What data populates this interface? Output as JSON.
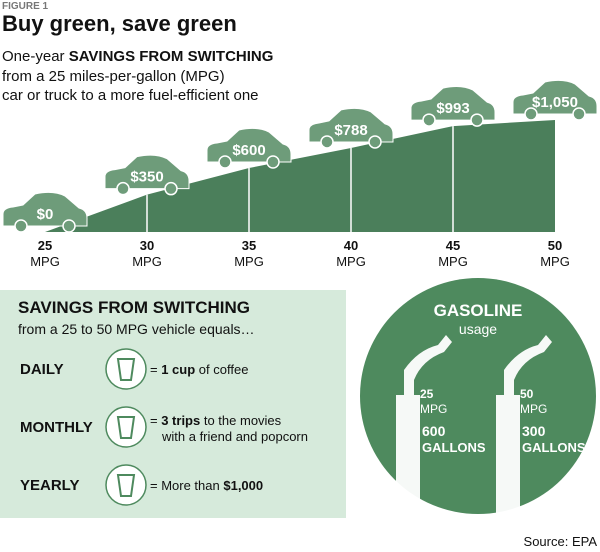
{
  "chart_data": {
    "type": "area",
    "figure_label": "FIGURE 1",
    "title": "Buy green, save green",
    "subtitle": {
      "lead": "One-year",
      "bold": "SAVINGS FROM SWITCHING",
      "lines": [
        "from a 25 miles-per-gallon (MPG)",
        "car or truck to a more fuel-efficient one"
      ]
    },
    "x": [
      25,
      30,
      35,
      40,
      45,
      50
    ],
    "x_label": "MPG",
    "values": [
      0,
      350,
      600,
      788,
      993,
      1050
    ],
    "value_labels": [
      "$0",
      "$350",
      "$600",
      "$788",
      "$993",
      "$1,050"
    ],
    "color": "#4b7f5b",
    "car_color": "#6e9c7a"
  },
  "savings_box": {
    "heading": "SAVINGS FROM SWITCHING",
    "subheading": "from a 25 to 50 MPG vehicle equals…",
    "rows": [
      {
        "period": "DAILY",
        "prefix": "= ",
        "bold": "1 cup",
        "suffix": " of coffee",
        "line2": null
      },
      {
        "period": "MONTHLY",
        "prefix": "= ",
        "bold": "3 trips",
        "suffix": " to the movies",
        "line2": "with a friend and popcorn"
      },
      {
        "period": "YEARLY",
        "prefix": "= More than ",
        "bold": "$1,000",
        "suffix": "",
        "line2": null
      }
    ]
  },
  "gasoline": {
    "title": "GASOLINE",
    "subtitle": "usage",
    "items": [
      {
        "mpg": 25,
        "mpg_unit": "MPG",
        "gallons": 600,
        "gallons_unit": "GALLONS"
      },
      {
        "mpg": 50,
        "mpg_unit": "MPG",
        "gallons": 300,
        "gallons_unit": "GALLONS"
      }
    ]
  },
  "source": "Source: EPA"
}
